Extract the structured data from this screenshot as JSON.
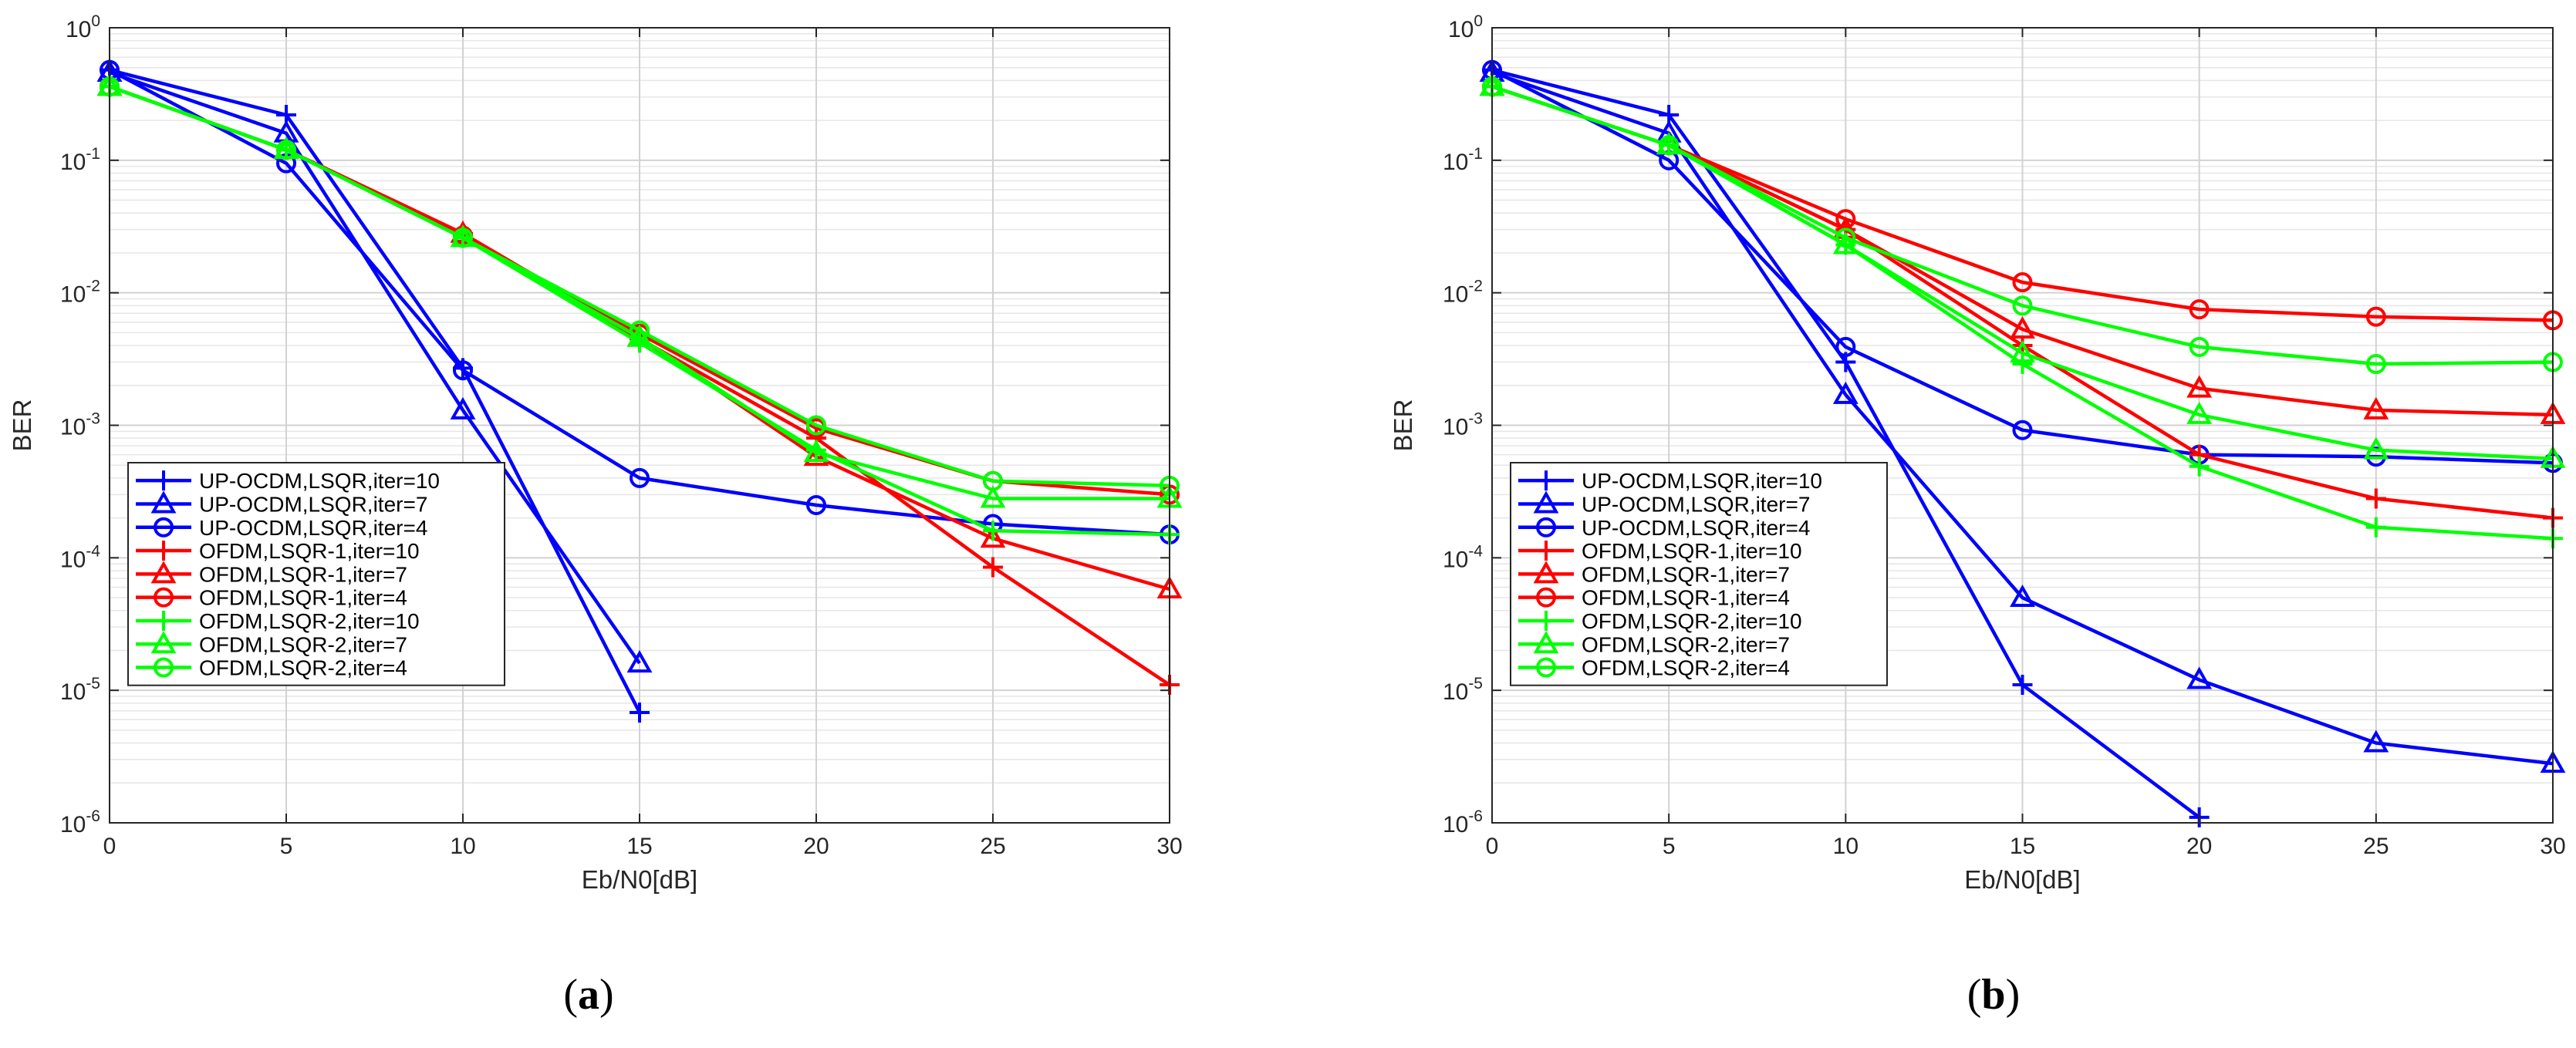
{
  "figure": {
    "caption_a": "a",
    "caption_b": "b"
  },
  "chart_data": [
    {
      "id": "a",
      "type": "line",
      "yscale": "log",
      "xlabel": "Eb/N0[dB]",
      "ylabel": "BER",
      "xlim": [
        0,
        30
      ],
      "ylim": [
        1e-06,
        1
      ],
      "xticks": [
        0,
        5,
        10,
        15,
        20,
        25,
        30
      ],
      "yticks": [
        {
          "base": "10",
          "exp": "0"
        },
        {
          "base": "10",
          "exp": "-1"
        },
        {
          "base": "10",
          "exp": "-2"
        },
        {
          "base": "10",
          "exp": "-3"
        },
        {
          "base": "10",
          "exp": "-4"
        },
        {
          "base": "10",
          "exp": "-5"
        },
        {
          "base": "10",
          "exp": "-6"
        }
      ],
      "grid": true,
      "legend_position": "bottom-left",
      "series": [
        {
          "name": "UP-OCDM,LSQR,iter=10",
          "color": "#0000ff",
          "marker": "plus",
          "x": [
            0,
            5,
            10,
            15
          ],
          "y": [
            0.48,
            0.22,
            0.0027,
            6.8e-06
          ]
        },
        {
          "name": "UP-OCDM,LSQR,iter=7",
          "color": "#0000ff",
          "marker": "triangle",
          "x": [
            0,
            5,
            10,
            15
          ],
          "y": [
            0.46,
            0.16,
            0.0013,
            1.6e-05
          ]
        },
        {
          "name": "UP-OCDM,LSQR,iter=4",
          "color": "#0000ff",
          "marker": "circle",
          "x": [
            0,
            5,
            10,
            15,
            20,
            25,
            30
          ],
          "y": [
            0.48,
            0.095,
            0.0026,
            0.0004,
            0.00025,
            0.00018,
            0.00015
          ]
        },
        {
          "name": "OFDM,LSQR-1,iter=10",
          "color": "#ff0000",
          "marker": "plus",
          "x": [
            0,
            5,
            10,
            15,
            20,
            25,
            30
          ],
          "y": [
            0.36,
            0.12,
            0.028,
            0.0045,
            0.0008,
            8.5e-05,
            1.1e-05
          ]
        },
        {
          "name": "OFDM,LSQR-1,iter=7",
          "color": "#ff0000",
          "marker": "triangle",
          "x": [
            0,
            5,
            10,
            15,
            20,
            25,
            30
          ],
          "y": [
            0.36,
            0.12,
            0.028,
            0.0046,
            0.00058,
            0.00014,
            5.8e-05
          ]
        },
        {
          "name": "OFDM,LSQR-1,iter=4",
          "color": "#ff0000",
          "marker": "circle",
          "x": [
            0,
            5,
            10,
            15,
            20,
            25,
            30
          ],
          "y": [
            0.36,
            0.12,
            0.027,
            0.0049,
            0.00095,
            0.00038,
            0.0003
          ]
        },
        {
          "name": "OFDM,LSQR-2,iter=10",
          "color": "#00ff00",
          "marker": "plus",
          "x": [
            0,
            5,
            10,
            15,
            20,
            25,
            30
          ],
          "y": [
            0.36,
            0.12,
            0.026,
            0.0042,
            0.00065,
            0.00016,
            0.00015
          ]
        },
        {
          "name": "OFDM,LSQR-2,iter=7",
          "color": "#00ff00",
          "marker": "triangle",
          "x": [
            0,
            5,
            10,
            15,
            20,
            25,
            30
          ],
          "y": [
            0.36,
            0.12,
            0.026,
            0.0046,
            0.00062,
            0.00028,
            0.00028
          ]
        },
        {
          "name": "OFDM,LSQR-2,iter=4",
          "color": "#00ff00",
          "marker": "circle",
          "x": [
            0,
            5,
            10,
            15,
            20,
            25,
            30
          ],
          "y": [
            0.36,
            0.12,
            0.026,
            0.0052,
            0.001,
            0.00038,
            0.00035
          ]
        }
      ]
    },
    {
      "id": "b",
      "type": "line",
      "yscale": "log",
      "xlabel": "Eb/N0[dB]",
      "ylabel": "BER",
      "xlim": [
        0,
        30
      ],
      "ylim": [
        1e-06,
        1
      ],
      "xticks": [
        0,
        5,
        10,
        15,
        20,
        25,
        30
      ],
      "yticks": [
        {
          "base": "10",
          "exp": "0"
        },
        {
          "base": "10",
          "exp": "-1"
        },
        {
          "base": "10",
          "exp": "-2"
        },
        {
          "base": "10",
          "exp": "-3"
        },
        {
          "base": "10",
          "exp": "-4"
        },
        {
          "base": "10",
          "exp": "-5"
        },
        {
          "base": "10",
          "exp": "-6"
        }
      ],
      "grid": true,
      "legend_position": "bottom-left",
      "series": [
        {
          "name": "UP-OCDM,LSQR,iter=10",
          "color": "#0000ff",
          "marker": "plus",
          "x": [
            0,
            5,
            10,
            15,
            20
          ],
          "y": [
            0.48,
            0.22,
            0.003,
            1.1e-05,
            1.1e-06
          ]
        },
        {
          "name": "UP-OCDM,LSQR,iter=7",
          "color": "#0000ff",
          "marker": "triangle",
          "x": [
            0,
            5,
            10,
            15,
            20,
            25,
            30
          ],
          "y": [
            0.46,
            0.16,
            0.0017,
            5e-05,
            1.2e-05,
            4e-06,
            2.8e-06
          ]
        },
        {
          "name": "UP-OCDM,LSQR,iter=4",
          "color": "#0000ff",
          "marker": "circle",
          "x": [
            0,
            5,
            10,
            15,
            20,
            25,
            30
          ],
          "y": [
            0.48,
            0.1,
            0.0039,
            0.00092,
            0.0006,
            0.00058,
            0.00052
          ]
        },
        {
          "name": "OFDM,LSQR-1,iter=10",
          "color": "#ff0000",
          "marker": "plus",
          "x": [
            0,
            5,
            10,
            15,
            20,
            25,
            30
          ],
          "y": [
            0.36,
            0.13,
            0.03,
            0.004,
            0.0006,
            0.00028,
            0.0002
          ]
        },
        {
          "name": "OFDM,LSQR-1,iter=7",
          "color": "#ff0000",
          "marker": "triangle",
          "x": [
            0,
            5,
            10,
            15,
            20,
            25,
            30
          ],
          "y": [
            0.36,
            0.13,
            0.03,
            0.0053,
            0.0019,
            0.0013,
            0.0012
          ]
        },
        {
          "name": "OFDM,LSQR-1,iter=4",
          "color": "#ff0000",
          "marker": "circle",
          "x": [
            0,
            5,
            10,
            15,
            20,
            25,
            30
          ],
          "y": [
            0.36,
            0.13,
            0.036,
            0.012,
            0.0075,
            0.0066,
            0.0062
          ]
        },
        {
          "name": "OFDM,LSQR-2,iter=10",
          "color": "#00ff00",
          "marker": "plus",
          "x": [
            0,
            5,
            10,
            15,
            20,
            25,
            30
          ],
          "y": [
            0.36,
            0.13,
            0.023,
            0.0029,
            0.00049,
            0.00017,
            0.00014
          ]
        },
        {
          "name": "OFDM,LSQR-2,iter=7",
          "color": "#00ff00",
          "marker": "triangle",
          "x": [
            0,
            5,
            10,
            15,
            20,
            25,
            30
          ],
          "y": [
            0.36,
            0.13,
            0.023,
            0.0035,
            0.0012,
            0.00065,
            0.00056
          ]
        },
        {
          "name": "OFDM,LSQR-2,iter=4",
          "color": "#00ff00",
          "marker": "circle",
          "x": [
            0,
            5,
            10,
            15,
            20,
            25,
            30
          ],
          "y": [
            0.36,
            0.13,
            0.026,
            0.008,
            0.0039,
            0.0029,
            0.003
          ]
        }
      ]
    }
  ]
}
